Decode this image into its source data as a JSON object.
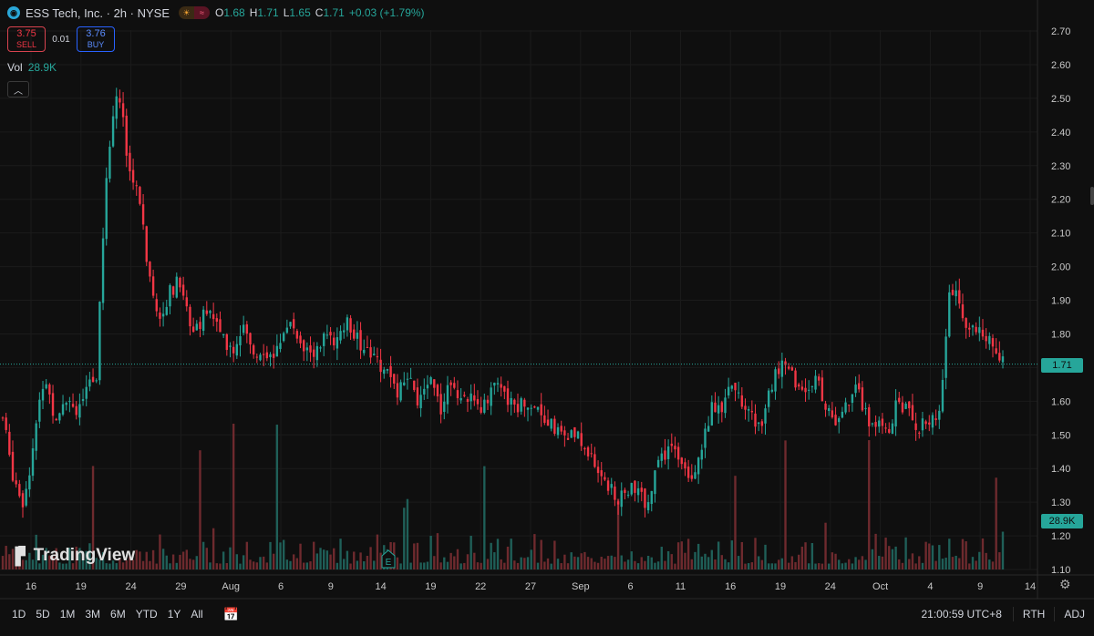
{
  "header": {
    "title": "ESS Tech, Inc. · 2h · NYSE",
    "ohlc": [
      {
        "label": "O",
        "value": "1.68"
      },
      {
        "label": "H",
        "value": "1.71"
      },
      {
        "label": "L",
        "value": "1.65"
      },
      {
        "label": "C",
        "value": "1.71"
      },
      {
        "label": "",
        "value": "+0.03 (+1.79%)"
      }
    ],
    "market_status_icons": [
      "sun-icon",
      "wave-icon"
    ]
  },
  "trade": {
    "sell_price": "3.75",
    "sell_label": "SELL",
    "spread": "0.01",
    "buy_price": "3.76",
    "buy_label": "BUY"
  },
  "volume": {
    "label": "Vol",
    "value": "28.9K"
  },
  "logo_text": "TradingView",
  "bottom_bar": {
    "ranges": [
      "1D",
      "5D",
      "1M",
      "3M",
      "6M",
      "YTD",
      "1Y",
      "All"
    ],
    "time": "21:00:59 UTC+8",
    "session": "RTH",
    "adj": "ADJ"
  },
  "colors": {
    "up": "#26a69a",
    "down": "#f23645",
    "background": "#0f0f0f",
    "grid": "#1b1b1b",
    "text": "#d1d4dc"
  },
  "chart_data": {
    "type": "candlestick",
    "ylim": [
      1.1,
      2.7
    ],
    "y_ticks": [
      "2.70",
      "2.60",
      "2.50",
      "2.40",
      "2.30",
      "2.20",
      "2.10",
      "2.00",
      "1.90",
      "1.80",
      "1.70",
      "1.60",
      "1.50",
      "1.40",
      "1.30",
      "1.20",
      "1.10"
    ],
    "x_ticks": [
      "16",
      "19",
      "24",
      "29",
      "Aug",
      "6",
      "9",
      "14",
      "19",
      "22",
      "27",
      "Sep",
      "6",
      "11",
      "16",
      "19",
      "24",
      "Oct",
      "4",
      "9",
      "14"
    ],
    "last_price": "1.71",
    "last_volume": "28.9K",
    "earnings_marker": "E",
    "path_prices": [
      1.55,
      1.38,
      1.3,
      1.48,
      1.68,
      1.55,
      1.62,
      1.58,
      1.62,
      1.68,
      2.3,
      2.55,
      2.32,
      2.22,
      1.98,
      1.86,
      1.92,
      1.96,
      1.82,
      1.84,
      1.88,
      1.78,
      1.75,
      1.82,
      1.74,
      1.76,
      1.72,
      1.82,
      1.82,
      1.76,
      1.74,
      1.8,
      1.76,
      1.84,
      1.78,
      1.76,
      1.72,
      1.68,
      1.63,
      1.66,
      1.58,
      1.7,
      1.58,
      1.66,
      1.62,
      1.6,
      1.58,
      1.65,
      1.62,
      1.58,
      1.6,
      1.59,
      1.56,
      1.52,
      1.49,
      1.5,
      1.46,
      1.4,
      1.36,
      1.29,
      1.34,
      1.32,
      1.3,
      1.42,
      1.46,
      1.44,
      1.38,
      1.45,
      1.58,
      1.56,
      1.65,
      1.59,
      1.55,
      1.53,
      1.68,
      1.72,
      1.66,
      1.62,
      1.68,
      1.56,
      1.55,
      1.59,
      1.63,
      1.55,
      1.53,
      1.52,
      1.6,
      1.56,
      1.52,
      1.54,
      1.59,
      1.96,
      1.85,
      1.8,
      1.82,
      1.75,
      1.71
    ]
  }
}
